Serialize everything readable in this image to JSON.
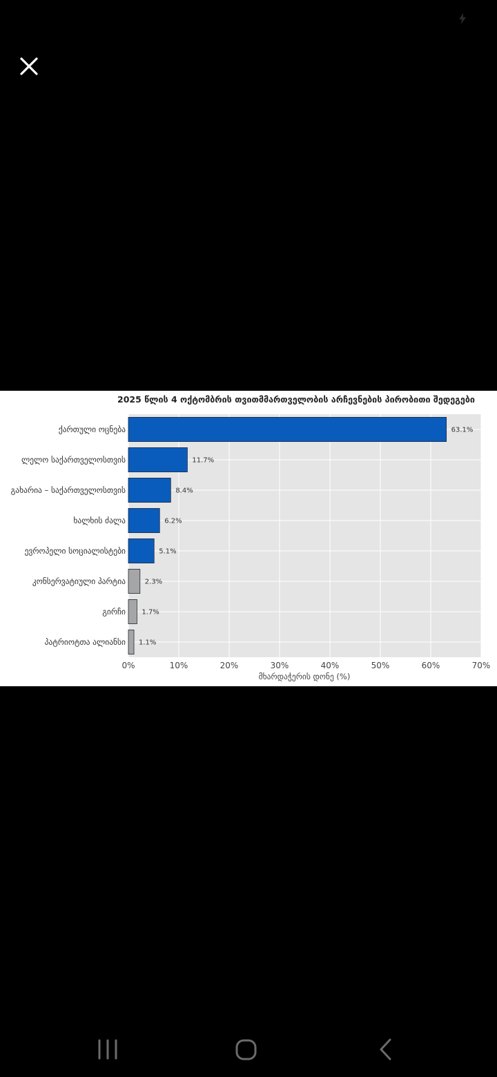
{
  "viewer": {
    "close_icon": "close-icon",
    "status_icon": "flash-icon"
  },
  "chart_data": {
    "type": "bar",
    "orientation": "horizontal",
    "title": "2025 წლის 4 ოქტომბრის თვითმმართველობის არჩევნების პირობითი შედეგები",
    "xlabel": "მხარდაჭერის დონე (%)",
    "ylabel": "",
    "xlim": [
      0,
      70
    ],
    "xticks": [
      "0%",
      "10%",
      "20%",
      "30%",
      "40%",
      "50%",
      "60%",
      "70%"
    ],
    "grid": true,
    "categories": [
      "ქართული ოცნება",
      "ლელო საქართველოსთვის",
      "გახარია – საქართველოსთვის",
      "ხალხის ძალა",
      "ევროპელი სოციალისტები",
      "კონსერვატიული პარტია",
      "გირჩი",
      "პატრიოტთა ალიანსი"
    ],
    "values": [
      63.1,
      11.7,
      8.4,
      6.2,
      5.1,
      2.3,
      1.7,
      1.1
    ],
    "value_labels": [
      "63.1%",
      "11.7%",
      "8.4%",
      "6.2%",
      "5.1%",
      "2.3%",
      "1.7%",
      "1.1%"
    ],
    "bar_colors": [
      "#0a5cbc",
      "#0a5cbc",
      "#0a5cbc",
      "#0a5cbc",
      "#0a5cbc",
      "#a6a6a6",
      "#a6a6a6",
      "#a6a6a6"
    ],
    "plot_background": "#e5e5e5"
  },
  "nav": {
    "recent_icon": "recent-apps-icon",
    "home_icon": "home-icon",
    "back_icon": "back-icon"
  }
}
